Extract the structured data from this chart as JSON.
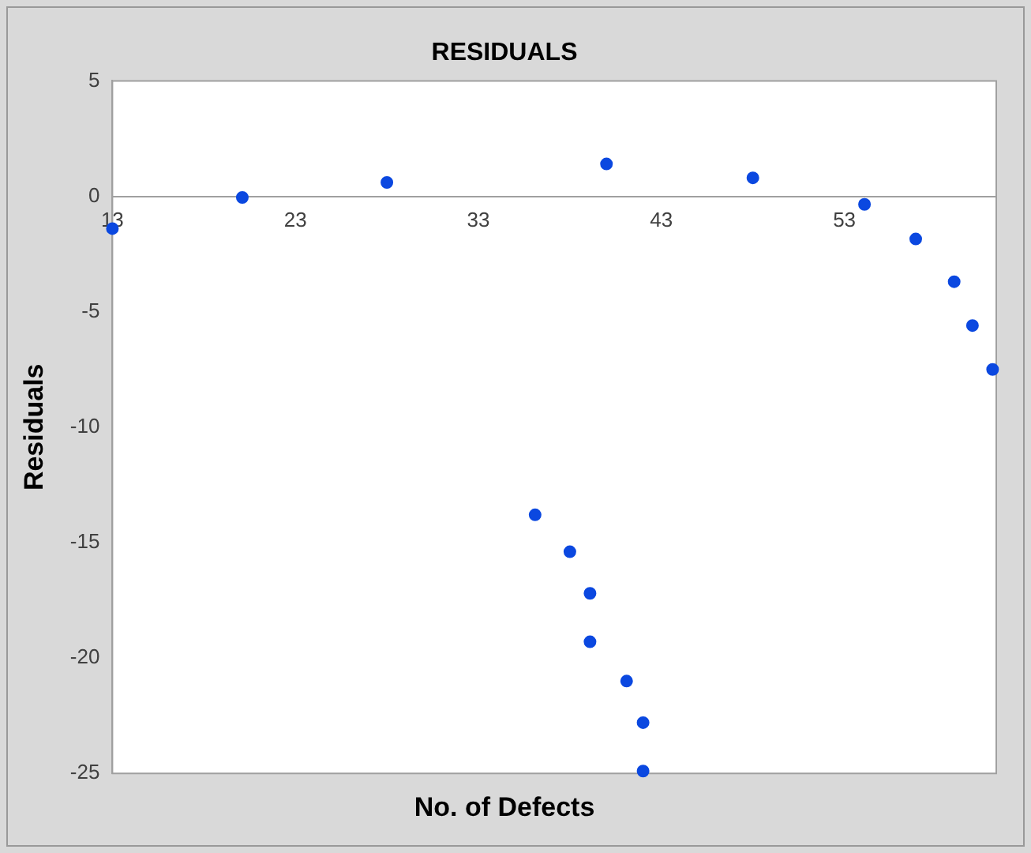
{
  "chart_data": {
    "type": "scatter",
    "title": "RESIDUALS",
    "xlabel": "No. of Defects",
    "ylabel": "Residuals",
    "x": [
      13,
      20.1,
      28,
      36.1,
      38,
      39.1,
      39.1,
      40,
      41.1,
      42,
      42,
      48,
      54.1,
      56.9,
      59,
      60,
      61.1
    ],
    "values": [
      -1.4,
      -0.05,
      0.6,
      -13.8,
      -15.4,
      -17.2,
      -19.3,
      1.4,
      -21,
      -22.8,
      -24.9,
      0.8,
      -0.35,
      -1.85,
      -3.7,
      -5.6,
      -7.5
    ],
    "color": "#0b48e0",
    "xlim": [
      13,
      61.3
    ],
    "xticks": [
      13,
      23,
      33,
      43,
      53
    ],
    "ylim": [
      -25,
      5
    ],
    "yticks": [
      -25,
      -20,
      -15,
      -10,
      -5,
      0,
      5
    ],
    "grid": false,
    "legend": false,
    "marker": "circle"
  }
}
